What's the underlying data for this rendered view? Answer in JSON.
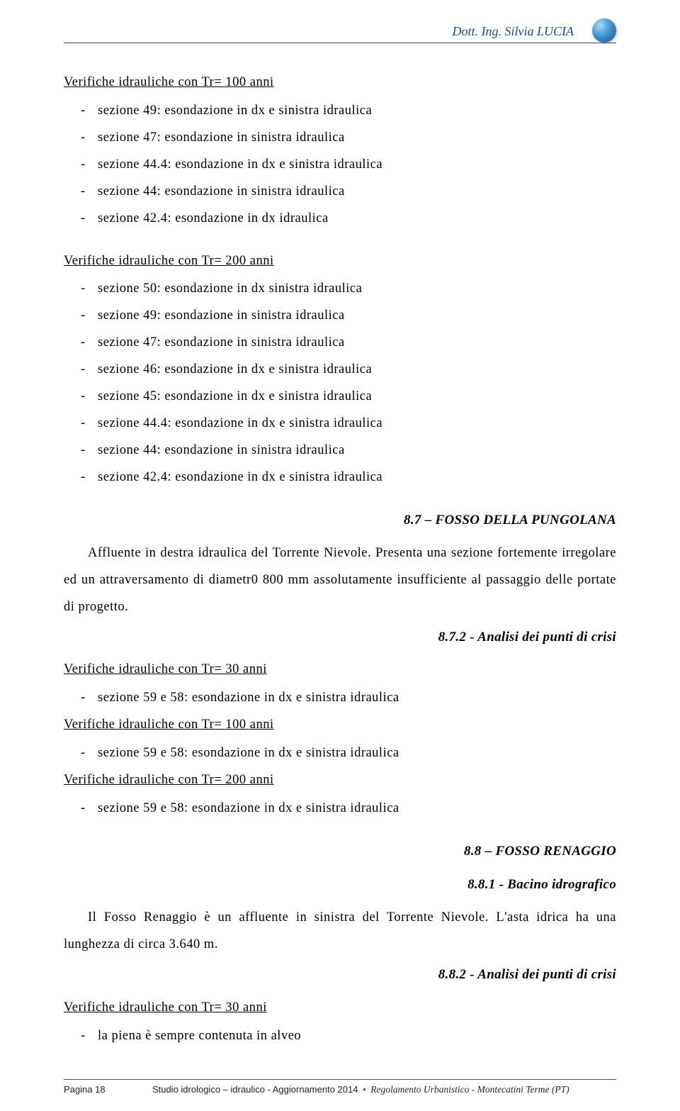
{
  "header": {
    "author": "Dott. Ing. Silvia LUCIA"
  },
  "sections": {
    "tr100": {
      "title": "Verifiche idrauliche con Tr= 100 anni",
      "items": [
        "sezione 49: esondazione in dx e sinistra idraulica",
        "sezione 47: esondazione in sinistra idraulica",
        "sezione 44.4: esondazione in dx e sinistra idraulica",
        "sezione 44: esondazione in sinistra idraulica",
        "sezione 42.4: esondazione in dx idraulica"
      ]
    },
    "tr200": {
      "title": "Verifiche idrauliche con Tr= 200 anni",
      "items": [
        "sezione 50: esondazione in dx sinistra idraulica",
        "sezione 49: esondazione in sinistra idraulica",
        "sezione 47: esondazione in sinistra idraulica",
        "sezione 46: esondazione in dx e sinistra idraulica",
        "sezione 45: esondazione in dx e sinistra idraulica",
        "sezione 44.4: esondazione in dx e sinistra idraulica",
        "sezione 44: esondazione in sinistra idraulica",
        "sezione 42.4: esondazione in dx e sinistra idraulica"
      ]
    },
    "h87": {
      "title": "8.7 – FOSSO DELLA PUNGOLANA",
      "para": "Affluente in destra idraulica del Torrente Nievole. Presenta una sezione fortemente irregolare ed un attraversamento di diametr0 800 mm assolutamente insufficiente al passaggio delle portate di progetto."
    },
    "h872": {
      "title": "8.7.2 - Analisi dei punti di crisi"
    },
    "tr30b": {
      "title": "Verifiche idrauliche con Tr= 30 anni",
      "items": [
        "sezione 59 e 58: esondazione in dx e sinistra idraulica"
      ]
    },
    "tr100b": {
      "title": "Verifiche idrauliche con Tr= 100 anni",
      "items": [
        "sezione 59 e 58: esondazione in dx e sinistra idraulica"
      ]
    },
    "tr200b": {
      "title": "Verifiche idrauliche con Tr= 200 anni",
      "items": [
        "sezione 59 e 58: esondazione in dx e sinistra idraulica"
      ]
    },
    "h88": {
      "title": "8.8 – FOSSO RENAGGIO"
    },
    "h881": {
      "title": "8.8.1 - Bacino idrografico",
      "para": "Il Fosso Renaggio è un affluente in sinistra del Torrente Nievole. L'asta idrica ha una lunghezza di circa 3.640 m."
    },
    "h882": {
      "title": "8.8.2 - Analisi dei punti di crisi"
    },
    "tr30c": {
      "title": "Verifiche idrauliche con Tr= 30 anni",
      "items": [
        "la piena è sempre contenuta in alveo"
      ]
    }
  },
  "footer": {
    "page": "Pagina 18",
    "center": "Studio idrologico – idraulico - Aggiornamento 2014",
    "right": "Regolamento Urbanistico - Montecatini Terme (PT)"
  }
}
